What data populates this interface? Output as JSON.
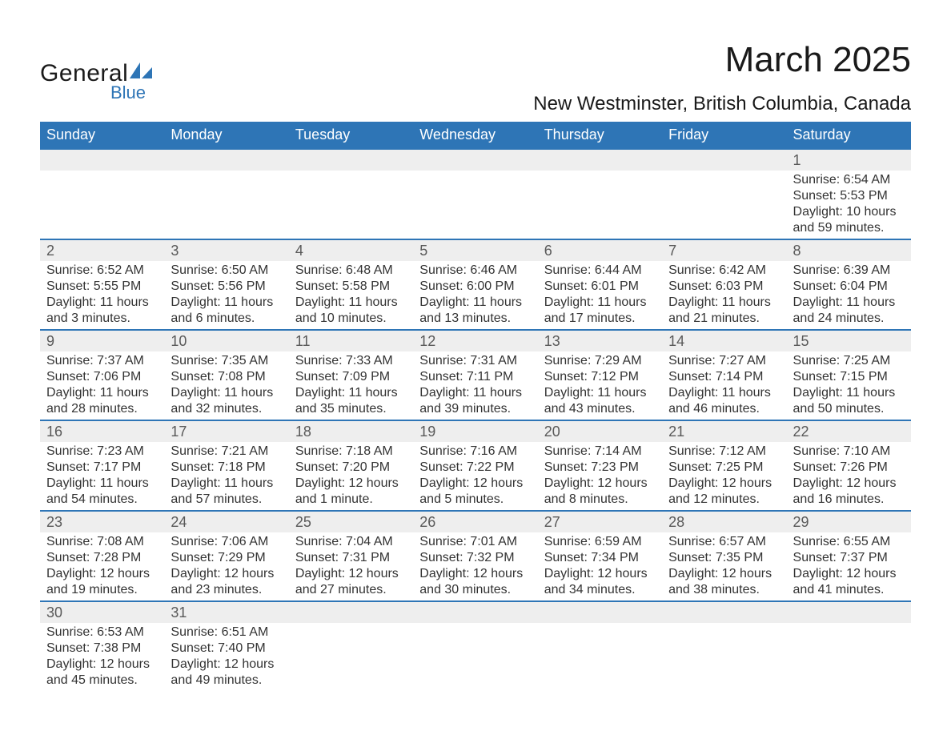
{
  "logo": {
    "text_general": "General",
    "text_blue": "Blue",
    "shape_color": "#2e75b6"
  },
  "header": {
    "month_title": "March 2025",
    "location": "New Westminster, British Columbia, Canada"
  },
  "colors": {
    "header_bg": "#2e75b6",
    "header_text": "#ffffff",
    "daynum_bg": "#eeeeee",
    "daynum_text": "#595959",
    "body_text": "#333333",
    "border": "#2e75b6",
    "page_bg": "#ffffff"
  },
  "typography": {
    "month_title_fontsize": 44,
    "location_fontsize": 24,
    "header_fontsize": 18,
    "daynum_fontsize": 18,
    "content_fontsize": 16,
    "font_family": "Arial"
  },
  "calendar": {
    "type": "table",
    "day_headers": [
      "Sunday",
      "Monday",
      "Tuesday",
      "Wednesday",
      "Thursday",
      "Friday",
      "Saturday"
    ],
    "weeks": [
      [
        null,
        null,
        null,
        null,
        null,
        null,
        {
          "day": "1",
          "sunrise": "Sunrise: 6:54 AM",
          "sunset": "Sunset: 5:53 PM",
          "daylight1": "Daylight: 10 hours",
          "daylight2": "and 59 minutes."
        }
      ],
      [
        {
          "day": "2",
          "sunrise": "Sunrise: 6:52 AM",
          "sunset": "Sunset: 5:55 PM",
          "daylight1": "Daylight: 11 hours",
          "daylight2": "and 3 minutes."
        },
        {
          "day": "3",
          "sunrise": "Sunrise: 6:50 AM",
          "sunset": "Sunset: 5:56 PM",
          "daylight1": "Daylight: 11 hours",
          "daylight2": "and 6 minutes."
        },
        {
          "day": "4",
          "sunrise": "Sunrise: 6:48 AM",
          "sunset": "Sunset: 5:58 PM",
          "daylight1": "Daylight: 11 hours",
          "daylight2": "and 10 minutes."
        },
        {
          "day": "5",
          "sunrise": "Sunrise: 6:46 AM",
          "sunset": "Sunset: 6:00 PM",
          "daylight1": "Daylight: 11 hours",
          "daylight2": "and 13 minutes."
        },
        {
          "day": "6",
          "sunrise": "Sunrise: 6:44 AM",
          "sunset": "Sunset: 6:01 PM",
          "daylight1": "Daylight: 11 hours",
          "daylight2": "and 17 minutes."
        },
        {
          "day": "7",
          "sunrise": "Sunrise: 6:42 AM",
          "sunset": "Sunset: 6:03 PM",
          "daylight1": "Daylight: 11 hours",
          "daylight2": "and 21 minutes."
        },
        {
          "day": "8",
          "sunrise": "Sunrise: 6:39 AM",
          "sunset": "Sunset: 6:04 PM",
          "daylight1": "Daylight: 11 hours",
          "daylight2": "and 24 minutes."
        }
      ],
      [
        {
          "day": "9",
          "sunrise": "Sunrise: 7:37 AM",
          "sunset": "Sunset: 7:06 PM",
          "daylight1": "Daylight: 11 hours",
          "daylight2": "and 28 minutes."
        },
        {
          "day": "10",
          "sunrise": "Sunrise: 7:35 AM",
          "sunset": "Sunset: 7:08 PM",
          "daylight1": "Daylight: 11 hours",
          "daylight2": "and 32 minutes."
        },
        {
          "day": "11",
          "sunrise": "Sunrise: 7:33 AM",
          "sunset": "Sunset: 7:09 PM",
          "daylight1": "Daylight: 11 hours",
          "daylight2": "and 35 minutes."
        },
        {
          "day": "12",
          "sunrise": "Sunrise: 7:31 AM",
          "sunset": "Sunset: 7:11 PM",
          "daylight1": "Daylight: 11 hours",
          "daylight2": "and 39 minutes."
        },
        {
          "day": "13",
          "sunrise": "Sunrise: 7:29 AM",
          "sunset": "Sunset: 7:12 PM",
          "daylight1": "Daylight: 11 hours",
          "daylight2": "and 43 minutes."
        },
        {
          "day": "14",
          "sunrise": "Sunrise: 7:27 AM",
          "sunset": "Sunset: 7:14 PM",
          "daylight1": "Daylight: 11 hours",
          "daylight2": "and 46 minutes."
        },
        {
          "day": "15",
          "sunrise": "Sunrise: 7:25 AM",
          "sunset": "Sunset: 7:15 PM",
          "daylight1": "Daylight: 11 hours",
          "daylight2": "and 50 minutes."
        }
      ],
      [
        {
          "day": "16",
          "sunrise": "Sunrise: 7:23 AM",
          "sunset": "Sunset: 7:17 PM",
          "daylight1": "Daylight: 11 hours",
          "daylight2": "and 54 minutes."
        },
        {
          "day": "17",
          "sunrise": "Sunrise: 7:21 AM",
          "sunset": "Sunset: 7:18 PM",
          "daylight1": "Daylight: 11 hours",
          "daylight2": "and 57 minutes."
        },
        {
          "day": "18",
          "sunrise": "Sunrise: 7:18 AM",
          "sunset": "Sunset: 7:20 PM",
          "daylight1": "Daylight: 12 hours",
          "daylight2": "and 1 minute."
        },
        {
          "day": "19",
          "sunrise": "Sunrise: 7:16 AM",
          "sunset": "Sunset: 7:22 PM",
          "daylight1": "Daylight: 12 hours",
          "daylight2": "and 5 minutes."
        },
        {
          "day": "20",
          "sunrise": "Sunrise: 7:14 AM",
          "sunset": "Sunset: 7:23 PM",
          "daylight1": "Daylight: 12 hours",
          "daylight2": "and 8 minutes."
        },
        {
          "day": "21",
          "sunrise": "Sunrise: 7:12 AM",
          "sunset": "Sunset: 7:25 PM",
          "daylight1": "Daylight: 12 hours",
          "daylight2": "and 12 minutes."
        },
        {
          "day": "22",
          "sunrise": "Sunrise: 7:10 AM",
          "sunset": "Sunset: 7:26 PM",
          "daylight1": "Daylight: 12 hours",
          "daylight2": "and 16 minutes."
        }
      ],
      [
        {
          "day": "23",
          "sunrise": "Sunrise: 7:08 AM",
          "sunset": "Sunset: 7:28 PM",
          "daylight1": "Daylight: 12 hours",
          "daylight2": "and 19 minutes."
        },
        {
          "day": "24",
          "sunrise": "Sunrise: 7:06 AM",
          "sunset": "Sunset: 7:29 PM",
          "daylight1": "Daylight: 12 hours",
          "daylight2": "and 23 minutes."
        },
        {
          "day": "25",
          "sunrise": "Sunrise: 7:04 AM",
          "sunset": "Sunset: 7:31 PM",
          "daylight1": "Daylight: 12 hours",
          "daylight2": "and 27 minutes."
        },
        {
          "day": "26",
          "sunrise": "Sunrise: 7:01 AM",
          "sunset": "Sunset: 7:32 PM",
          "daylight1": "Daylight: 12 hours",
          "daylight2": "and 30 minutes."
        },
        {
          "day": "27",
          "sunrise": "Sunrise: 6:59 AM",
          "sunset": "Sunset: 7:34 PM",
          "daylight1": "Daylight: 12 hours",
          "daylight2": "and 34 minutes."
        },
        {
          "day": "28",
          "sunrise": "Sunrise: 6:57 AM",
          "sunset": "Sunset: 7:35 PM",
          "daylight1": "Daylight: 12 hours",
          "daylight2": "and 38 minutes."
        },
        {
          "day": "29",
          "sunrise": "Sunrise: 6:55 AM",
          "sunset": "Sunset: 7:37 PM",
          "daylight1": "Daylight: 12 hours",
          "daylight2": "and 41 minutes."
        }
      ],
      [
        {
          "day": "30",
          "sunrise": "Sunrise: 6:53 AM",
          "sunset": "Sunset: 7:38 PM",
          "daylight1": "Daylight: 12 hours",
          "daylight2": "and 45 minutes."
        },
        {
          "day": "31",
          "sunrise": "Sunrise: 6:51 AM",
          "sunset": "Sunset: 7:40 PM",
          "daylight1": "Daylight: 12 hours",
          "daylight2": "and 49 minutes."
        },
        null,
        null,
        null,
        null,
        null
      ]
    ]
  }
}
